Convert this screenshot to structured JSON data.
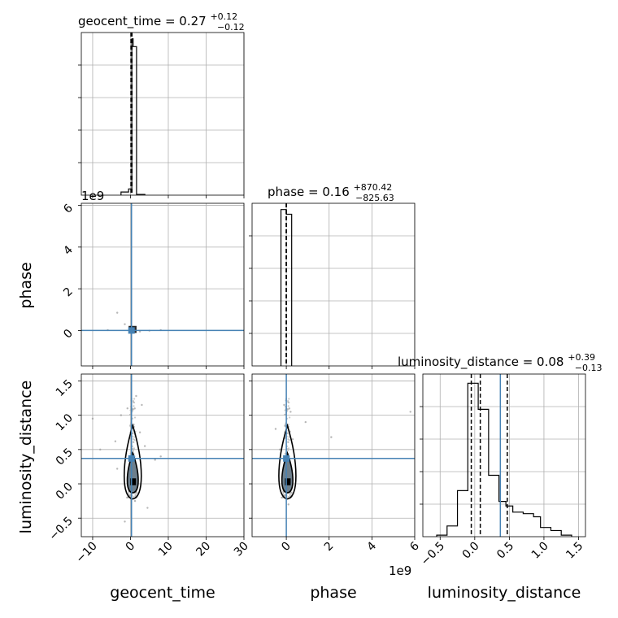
{
  "figure": {
    "type": "corner-plot",
    "truth_color": "#4682b4",
    "hist_color": "#000000"
  },
  "chart_data": [
    {
      "panel": "geocent_time-histogram",
      "type": "histogram",
      "title": {
        "text": "geocent_time = 0.27",
        "sup": "+0.12",
        "sub": "−0.12"
      },
      "xlim": [
        -13,
        30
      ],
      "bins": [
        {
          "x0": -2.5,
          "x1": -0.5,
          "count": 0.02
        },
        {
          "x0": -0.5,
          "x1": 0.35,
          "count": 0.04
        },
        {
          "x0": 0.35,
          "x1": 0.7,
          "count": 1.0
        },
        {
          "x0": 0.7,
          "x1": 1.6,
          "count": 0.95
        },
        {
          "x0": 1.6,
          "x1": 3.8,
          "count": 0.005
        }
      ],
      "ymax": 1.04,
      "quantile_lines": [
        0.15,
        0.27,
        0.39
      ],
      "grid": true
    },
    {
      "panel": "phase-vs-geocent_time",
      "type": "scatter",
      "xlim": [
        -13,
        30
      ],
      "ylim": [
        -1.7,
        6.1
      ],
      "y_multiplier": "1e9",
      "yticks": [
        {
          "value": 0,
          "label": "0"
        },
        {
          "value": 2,
          "label": "2"
        },
        {
          "value": 4,
          "label": "4"
        },
        {
          "value": 6,
          "label": "6"
        }
      ],
      "ylabel": "phase",
      "truth": {
        "x": 0.27,
        "y": 0.0
      },
      "points": [
        {
          "x": -3.5,
          "y": 0.85
        },
        {
          "x": -6,
          "y": 0.02
        },
        {
          "x": 5,
          "y": -0.01
        },
        {
          "x": -1.5,
          "y": 0.3
        },
        {
          "x": 2.5,
          "y": -0.05
        },
        {
          "x": 8,
          "y": 0.02
        }
      ],
      "grid": true
    },
    {
      "panel": "phase-histogram",
      "type": "histogram",
      "title": {
        "text": "phase = 0.16",
        "sup": "+870.42",
        "sub": "−825.63"
      },
      "xlim": [
        -1.6,
        6.0
      ],
      "bins": [
        {
          "x0": -0.25,
          "x1": 0.0,
          "count": 1.0
        },
        {
          "x0": 0.0,
          "x1": 0.25,
          "count": 0.97
        }
      ],
      "ymax": 1.04,
      "quantile_lines": [
        -8.3e-07,
        1.6e-10,
        8.7e-07
      ],
      "grid": true
    },
    {
      "panel": "luminosity_distance-vs-geocent_time",
      "type": "scatter",
      "xlim": [
        -13,
        30
      ],
      "ylim": [
        -0.77,
        1.6
      ],
      "xticks": [
        {
          "value": -10,
          "label": "−10"
        },
        {
          "value": 0,
          "label": "0"
        },
        {
          "value": 10,
          "label": "10"
        },
        {
          "value": 20,
          "label": "20"
        },
        {
          "value": 30,
          "label": "30"
        }
      ],
      "yticks": [
        {
          "value": -0.5,
          "label": "−0.5"
        },
        {
          "value": 0.0,
          "label": "0.0"
        },
        {
          "value": 0.5,
          "label": "0.5"
        },
        {
          "value": 1.0,
          "label": "1.0"
        },
        {
          "value": 1.5,
          "label": "1.5"
        }
      ],
      "xlabel": "geocent_time",
      "ylabel": "luminosity_distance",
      "truth": {
        "x": 0.27,
        "y": 0.37
      },
      "points": [
        {
          "x": -3.5,
          "y": 0.22
        },
        {
          "x": -8,
          "y": 0.5
        },
        {
          "x": 4.5,
          "y": -0.35
        },
        {
          "x": 3,
          "y": 1.15
        },
        {
          "x": -2.5,
          "y": 1.0
        },
        {
          "x": 6.5,
          "y": 0.35
        },
        {
          "x": -10,
          "y": 0.95
        },
        {
          "x": 1.5,
          "y": 1.28
        },
        {
          "x": -1.5,
          "y": -0.55
        },
        {
          "x": 2.5,
          "y": 0.75
        },
        {
          "x": -4,
          "y": 0.62
        },
        {
          "x": 8,
          "y": 0.4
        },
        {
          "x": -0.8,
          "y": 1.1
        },
        {
          "x": 1.2,
          "y": -0.25
        },
        {
          "x": 3.8,
          "y": 0.55
        }
      ],
      "grid": true
    },
    {
      "panel": "luminosity_distance-vs-phase",
      "type": "scatter",
      "xlim": [
        -1.6,
        6.0
      ],
      "ylim": [
        -0.77,
        1.6
      ],
      "x_multiplier": "1e9",
      "xticks": [
        {
          "value": 0,
          "label": "0"
        },
        {
          "value": 2,
          "label": "2"
        },
        {
          "value": 4,
          "label": "4"
        },
        {
          "value": 6,
          "label": "6"
        }
      ],
      "xlabel": "phase",
      "truth": {
        "x": 0.0,
        "y": 0.37
      },
      "points": [
        {
          "x": -0.1,
          "y": 1.15
        },
        {
          "x": 0.9,
          "y": 0.9
        },
        {
          "x": -0.5,
          "y": 0.8
        },
        {
          "x": 0.3,
          "y": 0.65
        },
        {
          "x": 2.1,
          "y": 0.68
        },
        {
          "x": -0.3,
          "y": 0.5
        },
        {
          "x": 0.2,
          "y": 1.05
        },
        {
          "x": 0.1,
          "y": -0.3
        },
        {
          "x": 5.8,
          "y": 1.05
        }
      ],
      "grid": true
    },
    {
      "panel": "luminosity_distance-histogram",
      "type": "histogram",
      "title": {
        "text": "luminosity_distance = 0.08",
        "sup": "+0.39",
        "sub": "−0.13"
      },
      "xlim": [
        -0.75,
        1.6
      ],
      "xticks": [
        {
          "value": -0.5,
          "label": "−0.5"
        },
        {
          "value": 0.0,
          "label": "0.0"
        },
        {
          "value": 0.5,
          "label": "0.5"
        },
        {
          "value": 1.0,
          "label": "1.0"
        },
        {
          "value": 1.5,
          "label": "1.5"
        }
      ],
      "xlabel": "luminosity_distance",
      "bins": [
        {
          "x0": -0.55,
          "x1": -0.4,
          "count": 0.01
        },
        {
          "x0": -0.4,
          "x1": -0.25,
          "count": 0.07
        },
        {
          "x0": -0.25,
          "x1": -0.1,
          "count": 0.3
        },
        {
          "x0": -0.1,
          "x1": 0.05,
          "count": 1.0
        },
        {
          "x0": 0.05,
          "x1": 0.2,
          "count": 0.83
        },
        {
          "x0": 0.2,
          "x1": 0.35,
          "count": 0.4
        },
        {
          "x0": 0.35,
          "x1": 0.45,
          "count": 0.23
        },
        {
          "x0": 0.45,
          "x1": 0.55,
          "count": 0.2
        },
        {
          "x0": 0.55,
          "x1": 0.7,
          "count": 0.16
        },
        {
          "x0": 0.7,
          "x1": 0.85,
          "count": 0.15
        },
        {
          "x0": 0.85,
          "x1": 0.95,
          "count": 0.13
        },
        {
          "x0": 0.95,
          "x1": 1.1,
          "count": 0.06
        },
        {
          "x0": 1.1,
          "x1": 1.25,
          "count": 0.04
        },
        {
          "x0": 1.25,
          "x1": 1.4,
          "count": 0.01
        }
      ],
      "ymax": 1.06,
      "quantile_lines": [
        -0.05,
        0.08,
        0.47
      ],
      "truth_line": 0.37,
      "grid": true
    }
  ]
}
